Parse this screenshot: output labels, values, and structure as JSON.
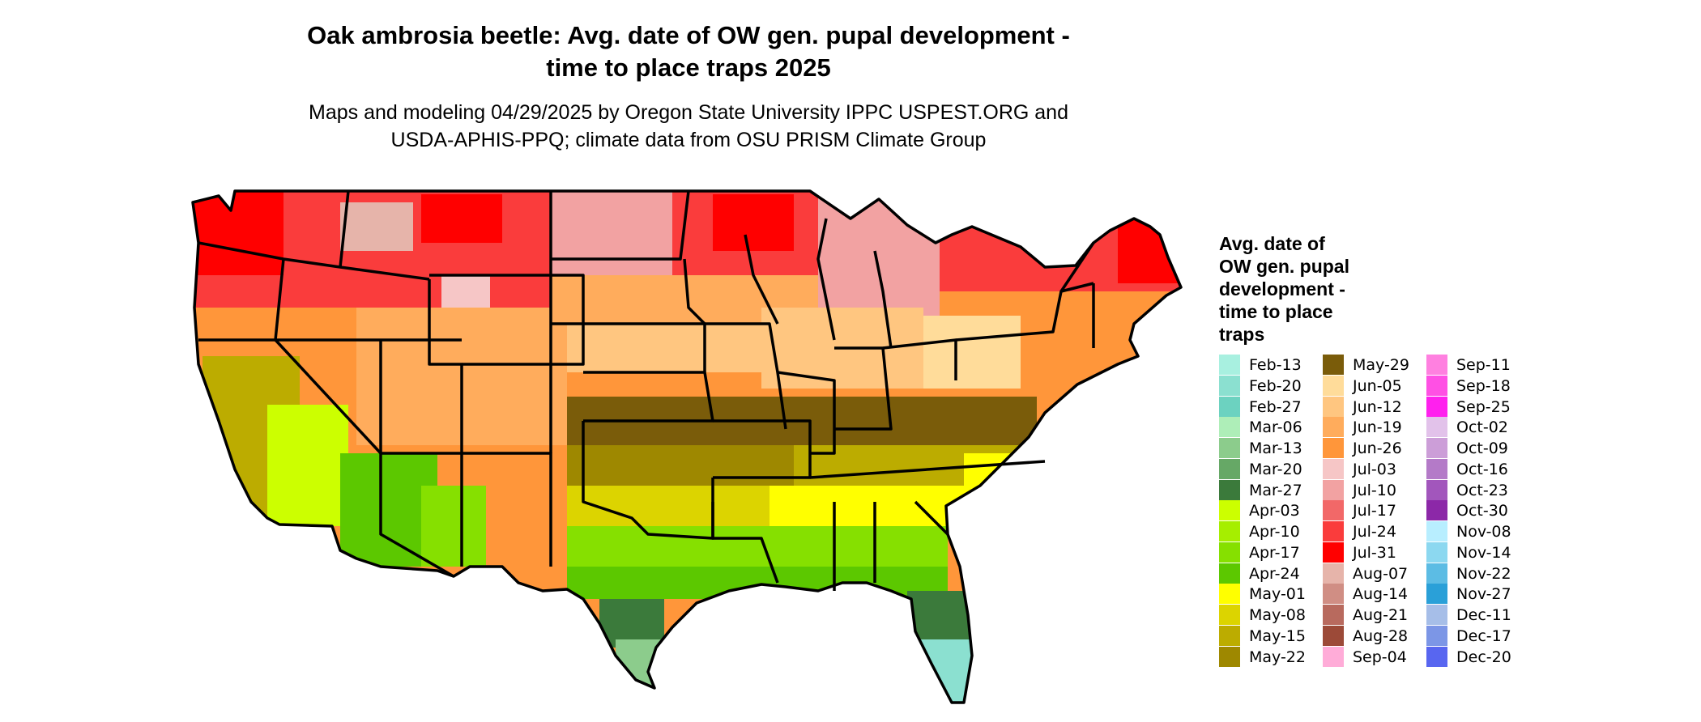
{
  "title_line1": "Oak ambrosia beetle: Avg. date of OW gen. pupal development -",
  "title_line2": "time to place traps 2025",
  "subtitle_line1": "Maps and modeling 04/29/2025 by Oregon State University IPPC USPEST.ORG and",
  "subtitle_line2": "USDA-APHIS-PPQ; climate data from OSU PRISM Climate Group",
  "legend": {
    "title_lines": [
      "Avg. date of",
      "OW gen. pupal",
      "development -",
      "time to place",
      "traps"
    ],
    "columns": [
      [
        {
          "label": "Feb-13",
          "color": "#a8f0e0"
        },
        {
          "label": "Feb-20",
          "color": "#8be0d0"
        },
        {
          "label": "Feb-27",
          "color": "#6cd2c0"
        },
        {
          "label": "Mar-06",
          "color": "#aeeeb8"
        },
        {
          "label": "Mar-13",
          "color": "#8ccc8c"
        },
        {
          "label": "Mar-20",
          "color": "#66a866"
        },
        {
          "label": "Mar-27",
          "color": "#3b7a3b"
        },
        {
          "label": "Apr-03",
          "color": "#ccff00"
        },
        {
          "label": "Apr-10",
          "color": "#a6ee00"
        },
        {
          "label": "Apr-17",
          "color": "#86e000"
        },
        {
          "label": "Apr-24",
          "color": "#5cc800"
        },
        {
          "label": "May-01",
          "color": "#ffff00"
        },
        {
          "label": "May-08",
          "color": "#dcd400"
        },
        {
          "label": "May-15",
          "color": "#bcac00"
        },
        {
          "label": "May-22",
          "color": "#9e8800"
        }
      ],
      [
        {
          "label": "May-29",
          "color": "#7a5c0a"
        },
        {
          "label": "Jun-05",
          "color": "#ffdc9a"
        },
        {
          "label": "Jun-12",
          "color": "#ffc680"
        },
        {
          "label": "Jun-19",
          "color": "#ffac5c"
        },
        {
          "label": "Jun-26",
          "color": "#ff963a"
        },
        {
          "label": "Jul-03",
          "color": "#f6c6c6"
        },
        {
          "label": "Jul-10",
          "color": "#f2a2a2"
        },
        {
          "label": "Jul-17",
          "color": "#f26868"
        },
        {
          "label": "Jul-24",
          "color": "#fa3c3c"
        },
        {
          "label": "Jul-31",
          "color": "#ff0000"
        },
        {
          "label": "Aug-07",
          "color": "#e6b4aa"
        },
        {
          "label": "Aug-14",
          "color": "#d08e84"
        },
        {
          "label": "Aug-21",
          "color": "#b86a5e"
        },
        {
          "label": "Aug-28",
          "color": "#9c4a38"
        },
        {
          "label": "Sep-04",
          "color": "#ffacd8"
        }
      ],
      [
        {
          "label": "Sep-11",
          "color": "#ff80e0"
        },
        {
          "label": "Sep-18",
          "color": "#ff50e4"
        },
        {
          "label": "Sep-25",
          "color": "#ff20ee"
        },
        {
          "label": "Oct-02",
          "color": "#e2c2ea"
        },
        {
          "label": "Oct-09",
          "color": "#cc9ed8"
        },
        {
          "label": "Oct-16",
          "color": "#b47ac8"
        },
        {
          "label": "Oct-23",
          "color": "#a256bc"
        },
        {
          "label": "Oct-30",
          "color": "#8c28a8"
        },
        {
          "label": "Nov-08",
          "color": "#b8eeff"
        },
        {
          "label": "Nov-14",
          "color": "#8cd8f0"
        },
        {
          "label": "Nov-22",
          "color": "#5cbce4"
        },
        {
          "label": "Nov-27",
          "color": "#2aa0d8"
        },
        {
          "label": "Dec-11",
          "color": "#a6bee8"
        },
        {
          "label": "Dec-17",
          "color": "#7c96e6"
        },
        {
          "label": "Dec-20",
          "color": "#5866f0"
        }
      ]
    ]
  }
}
